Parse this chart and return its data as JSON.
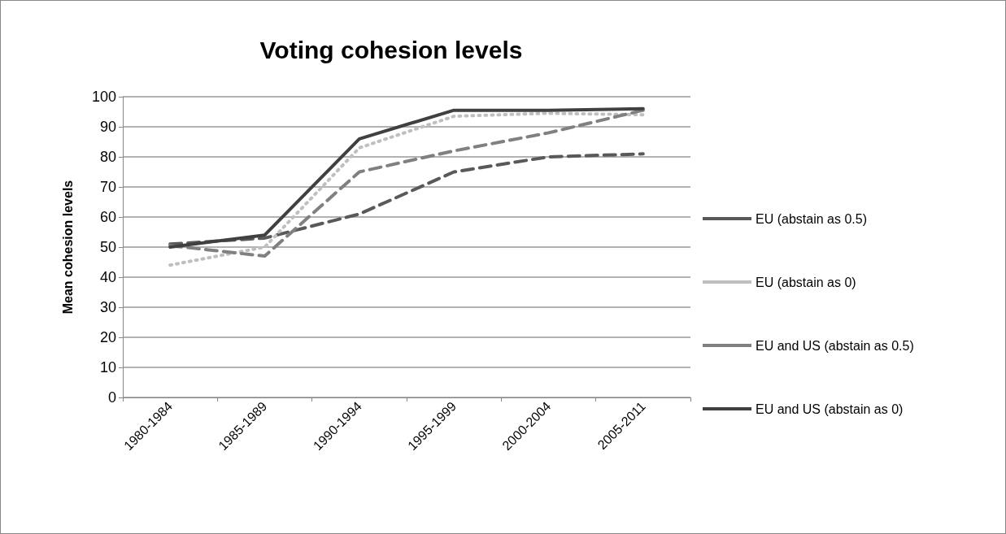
{
  "chart_data": {
    "type": "line",
    "title": "Voting cohesion levels",
    "ylabel": "Mean cohesion levels",
    "categories": [
      "1980-1984",
      "1985-1989",
      "1990-1994",
      "1995-1999",
      "2000-2004",
      "2005-2011"
    ],
    "series": [
      {
        "name": "EU (abstain as 0.5)",
        "color": "#595959",
        "line_style": "dashed",
        "values": [
          51,
          53,
          61,
          75,
          80,
          81
        ]
      },
      {
        "name": "EU (abstain as 0)",
        "color": "#bfbfbf",
        "line_style": "dotted",
        "values": [
          44,
          50,
          83,
          93.5,
          94.5,
          94
        ]
      },
      {
        "name": "EU and US (abstain as 0.5)",
        "color": "#808080",
        "line_style": "dashed",
        "values": [
          50.5,
          47,
          75,
          82,
          88,
          95.5
        ]
      },
      {
        "name": "EU and US (abstain as 0)",
        "color": "#404040",
        "line_style": "solid",
        "values": [
          50,
          54,
          86,
          95.5,
          95.5,
          96
        ]
      }
    ],
    "ylim": [
      0,
      100
    ],
    "yticks": [
      0,
      10,
      20,
      30,
      40,
      50,
      60,
      70,
      80,
      90,
      100
    ],
    "grid": "y",
    "legend": "right",
    "marker": "none"
  }
}
